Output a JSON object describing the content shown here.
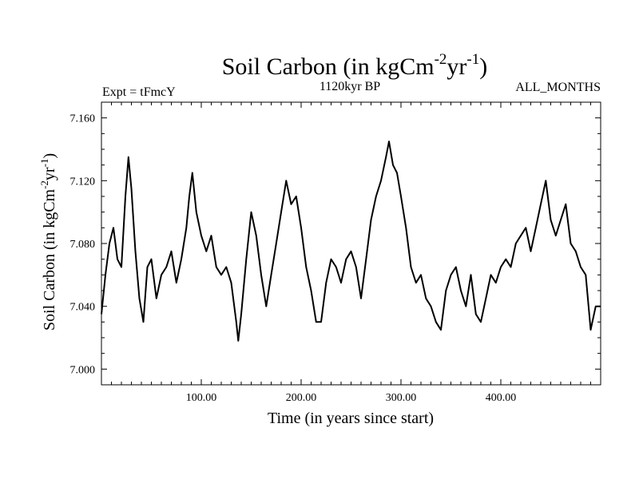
{
  "chart_data": {
    "type": "line",
    "title": {
      "main": "Soil Carbon (in kgCm",
      "sup1": "-2",
      "mid": "yr",
      "sup2": "-1",
      "end": ")"
    },
    "experiment_label": "Expt = tFmcY",
    "subtitle": "1120kyr BP",
    "month_label": "ALL_MONTHS",
    "xlabel": "Time (in years since start)",
    "ylabel": {
      "main": "Soil Carbon (in kgCm",
      "sup1": "-2",
      "mid": "yr",
      "sup2": "-1",
      "end": ")"
    },
    "xlim": [
      0,
      500
    ],
    "ylim": [
      6.99,
      7.17
    ],
    "x_ticks": [
      {
        "value": 100,
        "label": "100.00"
      },
      {
        "value": 200,
        "label": "200.00"
      },
      {
        "value": 300,
        "label": "300.00"
      },
      {
        "value": 400,
        "label": "400.00"
      }
    ],
    "y_ticks": [
      {
        "value": 7.0,
        "label": "7.000"
      },
      {
        "value": 7.04,
        "label": "7.040"
      },
      {
        "value": 7.08,
        "label": "7.080"
      },
      {
        "value": 7.12,
        "label": "7.120"
      },
      {
        "value": 7.16,
        "label": "7.160"
      }
    ],
    "series": [
      {
        "name": "Soil Carbon",
        "color": "#000000",
        "x": [
          0,
          4,
          8,
          12,
          16,
          20,
          24,
          27,
          30,
          34,
          38,
          42,
          46,
          50,
          55,
          60,
          65,
          70,
          75,
          80,
          85,
          88,
          91,
          95,
          100,
          105,
          110,
          115,
          120,
          125,
          130,
          135,
          137,
          140,
          145,
          150,
          155,
          160,
          165,
          170,
          175,
          180,
          185,
          190,
          195,
          200,
          205,
          210,
          215,
          220,
          225,
          230,
          235,
          240,
          245,
          250,
          255,
          260,
          265,
          270,
          275,
          280,
          285,
          288,
          292,
          296,
          300,
          305,
          310,
          315,
          320,
          325,
          330,
          335,
          340,
          345,
          350,
          355,
          360,
          365,
          370,
          375,
          380,
          385,
          390,
          395,
          400,
          405,
          410,
          415,
          420,
          425,
          430,
          435,
          440,
          445,
          450,
          455,
          460,
          465,
          470,
          475,
          480,
          485,
          490,
          495,
          500
        ],
        "values": [
          7.035,
          7.06,
          7.08,
          7.09,
          7.07,
          7.065,
          7.11,
          7.135,
          7.115,
          7.075,
          7.045,
          7.03,
          7.065,
          7.07,
          7.045,
          7.06,
          7.065,
          7.075,
          7.055,
          7.07,
          7.09,
          7.11,
          7.125,
          7.1,
          7.085,
          7.075,
          7.085,
          7.065,
          7.06,
          7.065,
          7.055,
          7.03,
          7.018,
          7.035,
          7.07,
          7.1,
          7.085,
          7.06,
          7.04,
          7.06,
          7.08,
          7.1,
          7.12,
          7.105,
          7.11,
          7.09,
          7.065,
          7.05,
          7.03,
          7.03,
          7.055,
          7.07,
          7.065,
          7.055,
          7.07,
          7.075,
          7.065,
          7.045,
          7.07,
          7.095,
          7.11,
          7.12,
          7.135,
          7.145,
          7.13,
          7.125,
          7.11,
          7.09,
          7.065,
          7.055,
          7.06,
          7.045,
          7.04,
          7.03,
          7.025,
          7.05,
          7.06,
          7.065,
          7.05,
          7.04,
          7.06,
          7.035,
          7.03,
          7.045,
          7.06,
          7.055,
          7.065,
          7.07,
          7.065,
          7.08,
          7.085,
          7.09,
          7.075,
          7.09,
          7.105,
          7.12,
          7.095,
          7.085,
          7.095,
          7.105,
          7.08,
          7.075,
          7.065,
          7.06,
          7.025,
          7.04,
          7.04
        ]
      }
    ],
    "grid": false
  }
}
